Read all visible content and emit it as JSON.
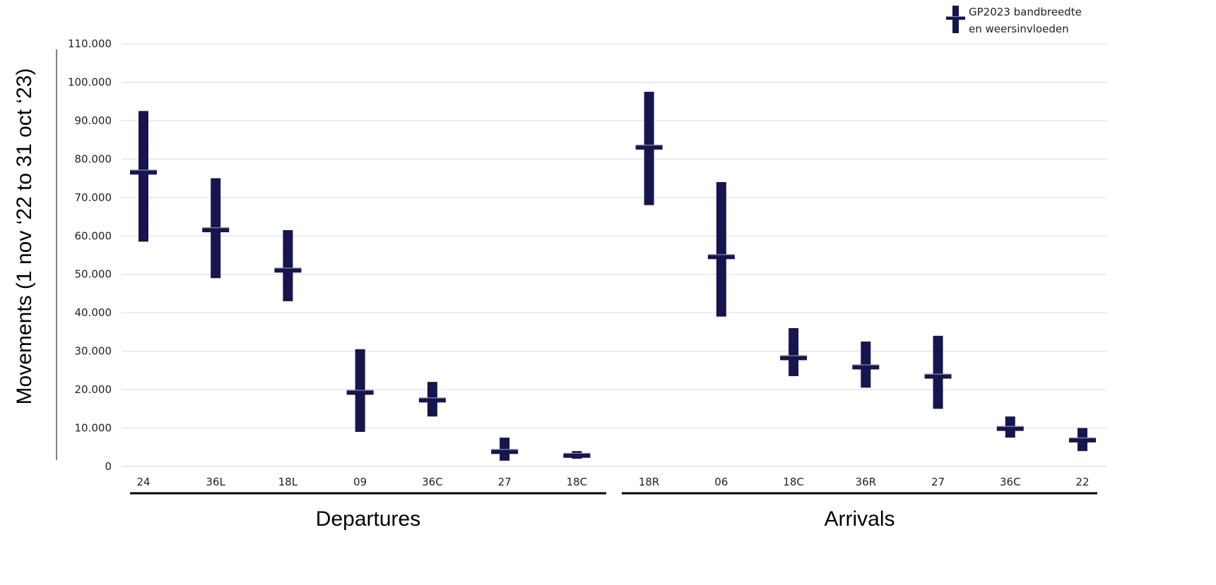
{
  "chart_data": {
    "type": "range-bar",
    "ylabel": "Movements (1 nov ‘22 to 31 oct ‘23)",
    "ylim": [
      0,
      110000
    ],
    "yticks": [
      0,
      10000,
      20000,
      30000,
      40000,
      50000,
      60000,
      70000,
      80000,
      90000,
      100000,
      110000
    ],
    "ytick_labels": [
      "0",
      "10.000",
      "20.000",
      "30.000",
      "40.000",
      "50.000",
      "60.000",
      "70.000",
      "80.000",
      "90.000",
      "100.000",
      "110.000"
    ],
    "grid": true,
    "legend": {
      "label_line1": "GP2023 bandbreedte",
      "label_line2": "en weersinvloeden",
      "placement": "top-right"
    },
    "color": "#17154e",
    "groups": [
      {
        "label": "Departures",
        "runways": [
          {
            "name": "24",
            "low": 58500,
            "high": 92500,
            "mid": 76500
          },
          {
            "name": "36L",
            "low": 49000,
            "high": 75000,
            "mid": 61500
          },
          {
            "name": "18L",
            "low": 43000,
            "high": 61500,
            "mid": 51000
          },
          {
            "name": "09",
            "low": 9000,
            "high": 30500,
            "mid": 19200
          },
          {
            "name": "36C",
            "low": 13000,
            "high": 22000,
            "mid": 17200
          },
          {
            "name": "27",
            "low": 1500,
            "high": 7500,
            "mid": 3800
          },
          {
            "name": "18C",
            "low": 2000,
            "high": 4000,
            "mid": 2800
          }
        ]
      },
      {
        "label": "Arrivals",
        "runways": [
          {
            "name": "18R",
            "low": 68000,
            "high": 97500,
            "mid": 83000
          },
          {
            "name": "06",
            "low": 39000,
            "high": 74000,
            "mid": 54500
          },
          {
            "name": "18C",
            "low": 23500,
            "high": 36000,
            "mid": 28200
          },
          {
            "name": "36R",
            "low": 20500,
            "high": 32500,
            "mid": 25800
          },
          {
            "name": "27",
            "low": 15000,
            "high": 34000,
            "mid": 23400
          },
          {
            "name": "36C",
            "low": 7500,
            "high": 13000,
            "mid": 9800
          },
          {
            "name": "22",
            "low": 4000,
            "high": 10000,
            "mid": 6800
          }
        ]
      }
    ]
  }
}
